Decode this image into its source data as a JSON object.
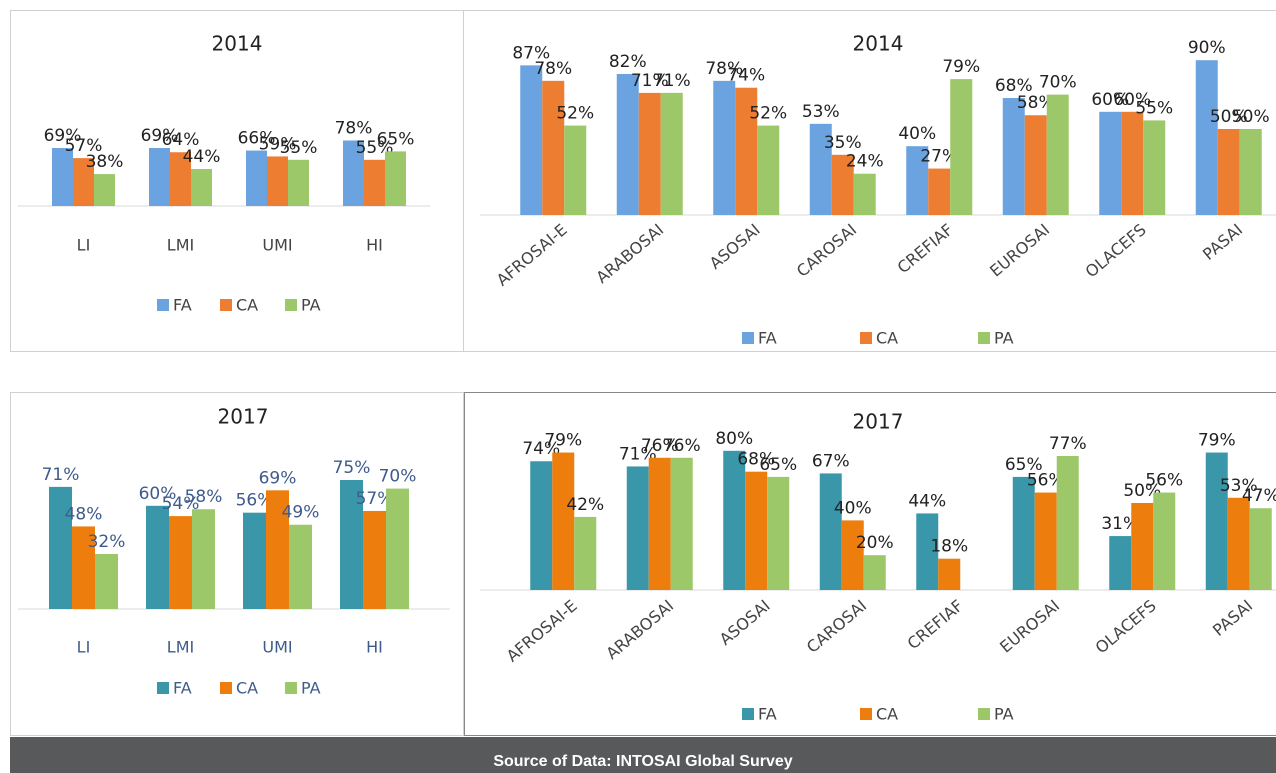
{
  "chart_data": [
    {
      "type": "bar",
      "title": "2014",
      "categories": [
        "LI",
        "LMI",
        "UMI",
        "HI"
      ],
      "ylim": [
        0,
        100
      ],
      "legend": "bottom",
      "label_color": "#222222",
      "series": [
        {
          "name": "FA",
          "color": "#6aa3df",
          "values": [
            69,
            69,
            66,
            78
          ],
          "value_labels": [
            "69%",
            "69%",
            "66%",
            "78%"
          ]
        },
        {
          "name": "CA",
          "color": "#ed7d31",
          "values": [
            57,
            64,
            59,
            55
          ],
          "value_labels": [
            "57%",
            "64%",
            "59%",
            "55%"
          ]
        },
        {
          "name": "PA",
          "color": "#9dc86a",
          "values": [
            38,
            44,
            55,
            65
          ],
          "value_labels": [
            "38%",
            "44%",
            "55%",
            "65%"
          ]
        }
      ]
    },
    {
      "type": "bar",
      "title": "2014",
      "categories": [
        "AFROSAI-E",
        "ARABOSAI",
        "ASOSAI",
        "CAROSAI",
        "CREFIAF",
        "EUROSAI",
        "OLACEFS",
        "PASAI"
      ],
      "ylim": [
        0,
        100
      ],
      "legend": "bottom",
      "label_color": "#222222",
      "series": [
        {
          "name": "FA",
          "color": "#6aa3df",
          "values": [
            87,
            82,
            78,
            53,
            40,
            68,
            60,
            90
          ],
          "value_labels": [
            "87%",
            "82%",
            "78%",
            "53%",
            "40%",
            "68%",
            "60%",
            "90%"
          ]
        },
        {
          "name": "CA",
          "color": "#ed7d31",
          "values": [
            78,
            71,
            74,
            35,
            27,
            58,
            60,
            50
          ],
          "value_labels": [
            "78%",
            "71%",
            "74%",
            "35%",
            "27%",
            "58%",
            "60%",
            "50%"
          ]
        },
        {
          "name": "PA",
          "color": "#9dc86a",
          "values": [
            52,
            71,
            52,
            24,
            79,
            70,
            55,
            50
          ],
          "value_labels": [
            "52%",
            "71%",
            "52%",
            "24%",
            "79%",
            "70%",
            "55%",
            "50%"
          ]
        }
      ]
    },
    {
      "type": "bar",
      "title": "2017",
      "categories": [
        "LI",
        "LMI",
        "UMI",
        "HI"
      ],
      "ylim": [
        0,
        100
      ],
      "legend": "bottom",
      "label_color": "#3e5b8c",
      "series": [
        {
          "name": "FA",
          "color": "#3a97aa",
          "values": [
            71,
            60,
            56,
            75
          ],
          "value_labels": [
            "71%",
            "60%",
            "56%",
            "75%"
          ]
        },
        {
          "name": "CA",
          "color": "#ed7d0d",
          "values": [
            48,
            54,
            69,
            57
          ],
          "value_labels": [
            "48%",
            "54%",
            "69%",
            "57%"
          ]
        },
        {
          "name": "PA",
          "color": "#9dc86a",
          "values": [
            32,
            58,
            49,
            70
          ],
          "value_labels": [
            "32%",
            "58%",
            "49%",
            "70%"
          ]
        }
      ]
    },
    {
      "type": "bar",
      "title": "2017",
      "categories": [
        "AFROSAI-E",
        "ARABOSAI",
        "ASOSAI",
        "CAROSAI",
        "CREFIAF",
        "EUROSAI",
        "OLACEFS",
        "PASAI"
      ],
      "ylim": [
        0,
        100
      ],
      "legend": "bottom",
      "label_color": "#222222",
      "series": [
        {
          "name": "FA",
          "color": "#3a97aa",
          "values": [
            74,
            71,
            80,
            67,
            44,
            65,
            31,
            79
          ],
          "value_labels": [
            "74%",
            "71%",
            "80%",
            "67%",
            "44%",
            "65%",
            "31%",
            "79%"
          ]
        },
        {
          "name": "CA",
          "color": "#ed7d0d",
          "values": [
            79,
            76,
            68,
            40,
            18,
            56,
            50,
            53
          ],
          "value_labels": [
            "79%",
            "76%",
            "68%",
            "40%",
            "18%",
            "56%",
            "50%",
            "53%"
          ]
        },
        {
          "name": "PA",
          "color": "#9dc86a",
          "values": [
            42,
            76,
            65,
            20,
            null,
            77,
            56,
            47
          ],
          "value_labels": [
            "42%",
            "76%",
            "65%",
            "20%",
            null,
            "77%",
            "56%",
            "47%"
          ]
        }
      ]
    }
  ],
  "source": "Source of Data: INTOSAI Global Survey"
}
